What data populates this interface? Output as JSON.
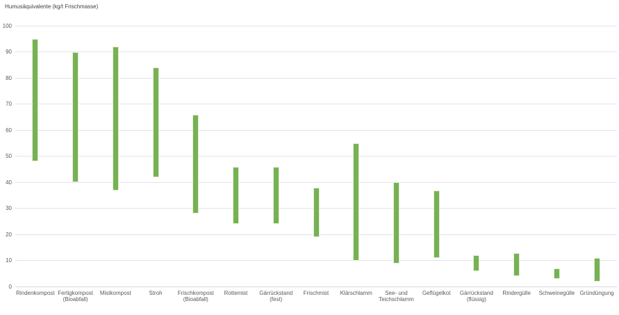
{
  "chart_data": {
    "type": "bar",
    "subtype": "floating-range-bars",
    "title": "Humusäquivalente (kg/t Frischmasse)",
    "xlabel": "",
    "ylabel": "Humusäquivalente (kg/t Frischmasse)",
    "categories": [
      "Rindenkompost",
      "Fertigkompost\n(Bioabfall)",
      "Mistkompost",
      "Stroh",
      "Frischkompost\n(Bioabfall)",
      "Rottemist",
      "Gärrückstand\n(fest)",
      "Frischmist",
      "Klärschlamm",
      "See- und\nTeichschlamm",
      "Geflügelkot",
      "Gärrückstand\n(flüssig)",
      "Rindergülle",
      "Schweinegülle",
      "Gründüngung"
    ],
    "series": [
      {
        "name": "Humusäquivalente (kg/t Frischmasse)",
        "ranges_low_high": [
          [
            48,
            95
          ],
          [
            40,
            90
          ],
          [
            37,
            92
          ],
          [
            42,
            84
          ],
          [
            28,
            66
          ],
          [
            24,
            46
          ],
          [
            24,
            46
          ],
          [
            19,
            38
          ],
          [
            10,
            55
          ],
          [
            9,
            40
          ],
          [
            11,
            37
          ],
          [
            6,
            12
          ],
          [
            4,
            13
          ],
          [
            3,
            7
          ],
          [
            2,
            11
          ]
        ]
      }
    ],
    "ylim": [
      0,
      100
    ],
    "yticks": [
      0,
      10,
      20,
      30,
      40,
      50,
      60,
      70,
      80,
      90,
      100
    ],
    "grid": true,
    "legend": false,
    "colors": {
      "bar_fill": "#77b153",
      "bar_border": "#e2efd9",
      "gridline": "#e3e3e9",
      "axis_line": "#d9d9df",
      "tick_text": "#595959",
      "title_text": "#3f3f3f",
      "background": "#ffffff"
    }
  }
}
